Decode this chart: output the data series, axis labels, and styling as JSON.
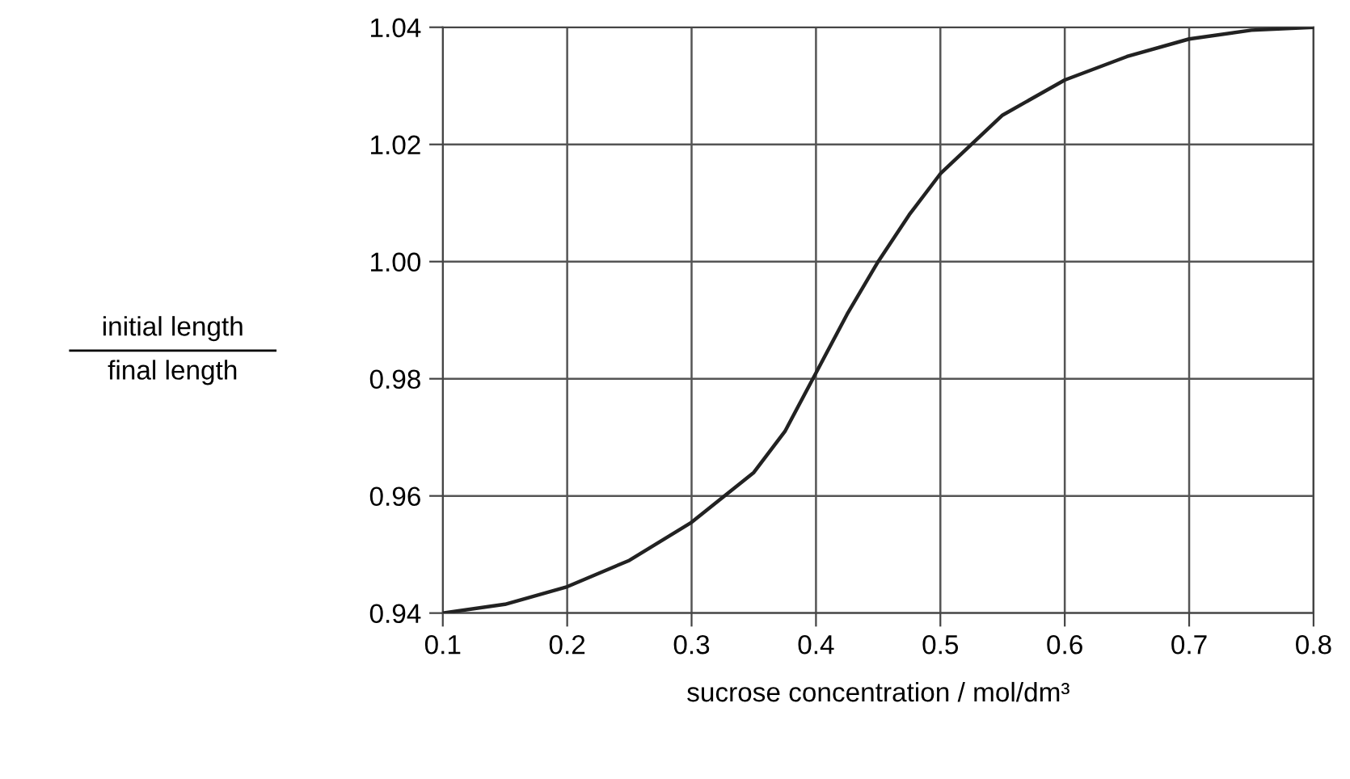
{
  "chart_data": {
    "type": "line",
    "xlabel": "sucrose concentration / mol/dm³",
    "ylabel": "initial length\nfinal length",
    "x": [
      0.1,
      0.15,
      0.2,
      0.25,
      0.3,
      0.35,
      0.375,
      0.4,
      0.425,
      0.45,
      0.475,
      0.5,
      0.55,
      0.6,
      0.65,
      0.7,
      0.75,
      0.8
    ],
    "series": [
      {
        "color": "#222222",
        "values": [
          0.94,
          0.9415,
          0.9445,
          0.949,
          0.9555,
          0.964,
          0.971,
          0.981,
          0.991,
          1.0,
          1.008,
          1.015,
          1.025,
          1.031,
          1.035,
          1.038,
          1.0395,
          1.04
        ]
      }
    ],
    "xlim": [
      0.1,
      0.8
    ],
    "xticks": [
      0.1,
      0.2,
      0.3,
      0.4,
      0.5,
      0.6,
      0.7,
      0.8
    ],
    "ylim": [
      0.94,
      1.04
    ],
    "yticks": [
      {
        "value": 0.94,
        "label": "0.94"
      },
      {
        "value": 0.96,
        "label": "0.96"
      },
      {
        "value": 0.98,
        "label": "0.98"
      },
      {
        "value": 1.0,
        "label": "1.00"
      },
      {
        "value": 1.02,
        "label": "1.02"
      },
      {
        "value": 1.04,
        "label": "1.04"
      }
    ],
    "grid": true,
    "marker": "none",
    "line_style": "solid"
  }
}
